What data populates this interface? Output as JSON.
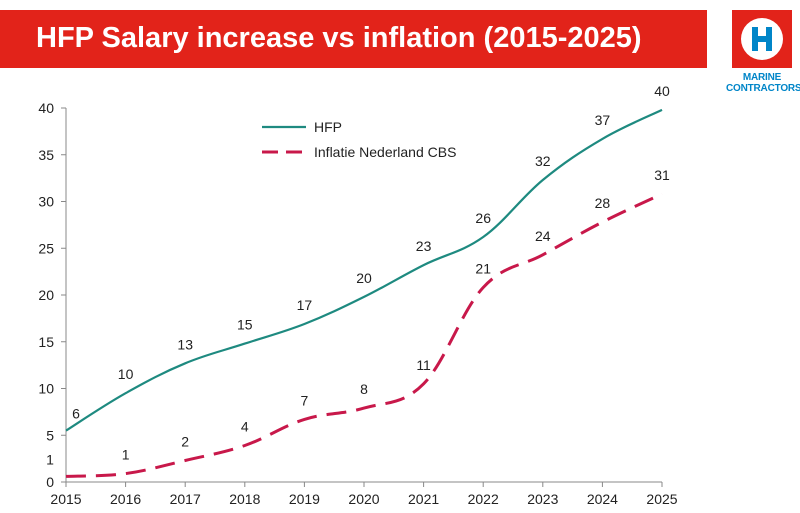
{
  "header": {
    "title": "HFP Salary increase vs inflation (2015-2025)"
  },
  "logo": {
    "line1": "MARINE",
    "line2": "CONTRACTORS",
    "icon": "h-circle-icon",
    "box_color": "#e2231a",
    "text_color": "#0085c8"
  },
  "chart_data": {
    "type": "line",
    "title": "HFP Salary increase vs inflation (2015-2025)",
    "xlabel": "",
    "ylabel": "",
    "x": [
      2015,
      2016,
      2017,
      2018,
      2019,
      2020,
      2021,
      2022,
      2023,
      2024,
      2025
    ],
    "ylim": [
      0,
      40
    ],
    "yticks": [
      0,
      5,
      10,
      15,
      20,
      25,
      30,
      35,
      40
    ],
    "grid": false,
    "legend_position": "top-center",
    "series": [
      {
        "name": "HFP",
        "color": "#1e8a80",
        "style": "solid",
        "values": [
          5.5,
          9.5,
          12.7,
          14.8,
          16.9,
          19.8,
          23.2,
          26.2,
          32.3,
          36.7,
          39.8
        ],
        "labels": [
          "6",
          "10",
          "13",
          "15",
          "17",
          "20",
          "23",
          "26",
          "32",
          "37",
          "40"
        ]
      },
      {
        "name": "Inflatie Nederland CBS",
        "color": "#c8184a",
        "style": "dashed",
        "values": [
          0.6,
          0.9,
          2.3,
          3.9,
          6.7,
          7.9,
          10.5,
          20.8,
          24.3,
          27.8,
          30.8
        ],
        "labels": [
          "1",
          "1",
          "2",
          "4",
          "7",
          "8",
          "11",
          "21",
          "24",
          "28",
          "31"
        ]
      }
    ]
  }
}
